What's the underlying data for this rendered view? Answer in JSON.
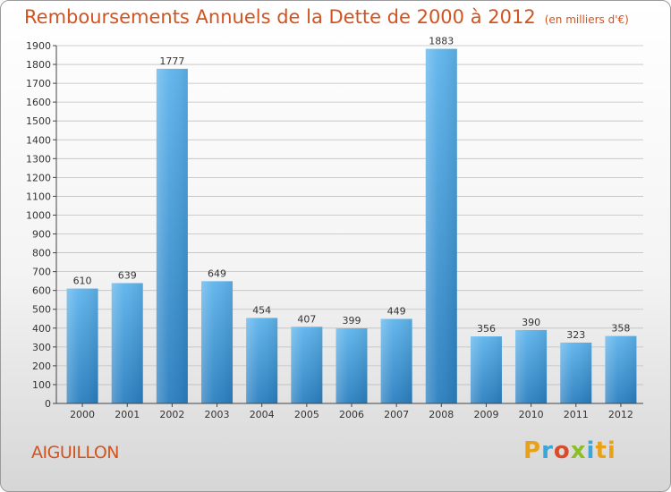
{
  "header": {
    "title": "Remboursements Annuels de la Dette de 2000 à 2012",
    "unit": "(en milliers d'€)"
  },
  "footer": {
    "city": "AIGUILLON",
    "logo": "Proxiti"
  },
  "colors": {
    "title": "#d2531f",
    "bar_light": "#5eb4ec",
    "bar_dark": "#2a7fc0",
    "grid": "#bfbfbf",
    "axis": "#444444"
  },
  "chart_data": {
    "type": "bar",
    "title": "Remboursements Annuels de la Dette de 2000 à 2012",
    "ylabel": "",
    "xlabel": "",
    "ylim": [
      0,
      1900
    ],
    "yticks": [
      0,
      100,
      200,
      300,
      400,
      500,
      600,
      700,
      800,
      900,
      1000,
      1100,
      1200,
      1300,
      1400,
      1500,
      1600,
      1700,
      1800,
      1900
    ],
    "categories": [
      "2000",
      "2001",
      "2002",
      "2003",
      "2004",
      "2005",
      "2006",
      "2007",
      "2008",
      "2009",
      "2010",
      "2011",
      "2012"
    ],
    "values": [
      610,
      639,
      1777,
      649,
      454,
      407,
      399,
      449,
      1883,
      356,
      390,
      323,
      358
    ],
    "grid": true
  }
}
